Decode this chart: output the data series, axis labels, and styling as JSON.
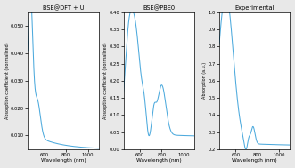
{
  "title1": "BSE@DFT + U",
  "title2": "BSE@PBE0",
  "title3": "Experimental",
  "xlabel": "Wavelength (nm)",
  "ylabel1": "Absorption coefficient (normalized)",
  "ylabel2": "Absorption coefficient (normalized)",
  "ylabel3": "Absorption (a.u.)",
  "xlim": [
    450,
    1100
  ],
  "ylim1": [
    0.005,
    0.055
  ],
  "ylim2": [
    0,
    0.4
  ],
  "ylim3": [
    0.2,
    1.0
  ],
  "xticks": [
    600,
    800,
    1000
  ],
  "line_color": "#4daadd",
  "bg_color": "#ffffff",
  "figure_bg": "#e8e8e8"
}
